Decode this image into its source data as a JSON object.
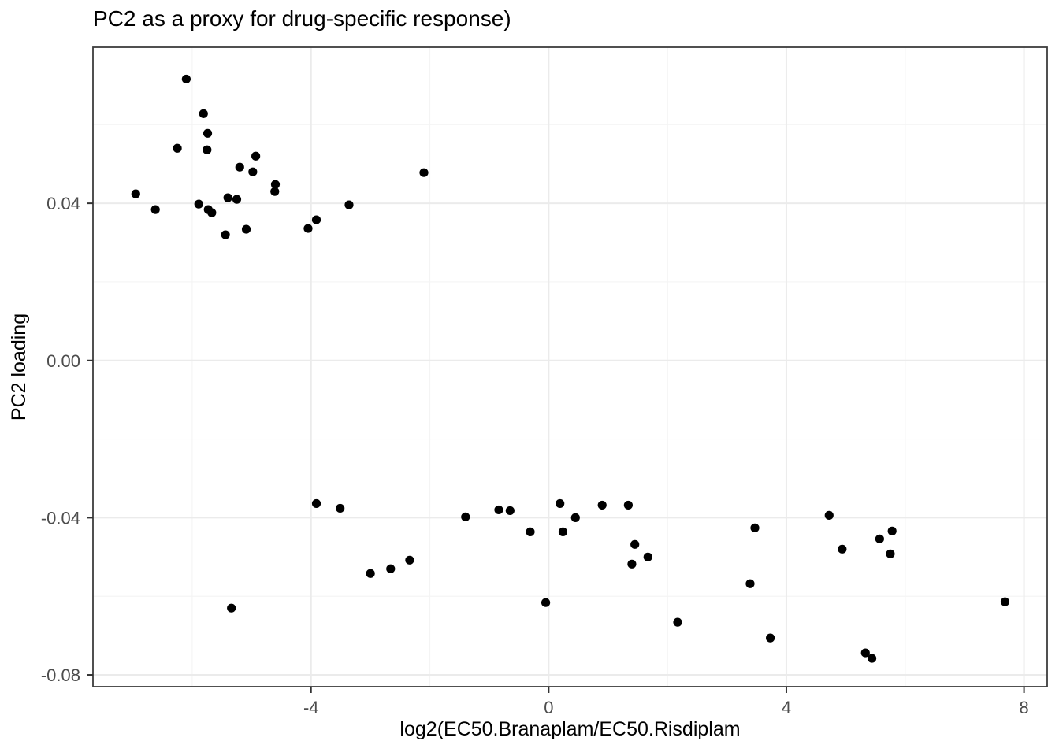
{
  "chart_data": {
    "type": "scatter",
    "title": "PC2 as a proxy for drug-specific response)",
    "xlabel": "log2(EC50.Branaplam/EC50.Risdiplam",
    "ylabel": "PC2 loading",
    "legend": "none",
    "grid": "major+minor",
    "xlim": [
      -7.67,
      8.39
    ],
    "ylim": [
      -0.083,
      0.0797
    ],
    "x_ticks": [
      {
        "value": -4,
        "label": "-4"
      },
      {
        "value": 0,
        "label": "0"
      },
      {
        "value": 4,
        "label": "4"
      },
      {
        "value": 8,
        "label": "8"
      }
    ],
    "y_ticks": [
      {
        "value": 0.04,
        "label": "0.04"
      },
      {
        "value": 0.0,
        "label": "0.00"
      },
      {
        "value": -0.04,
        "label": "-0.04"
      },
      {
        "value": -0.08,
        "label": "-0.08"
      }
    ],
    "x_minor": [
      -6,
      -2,
      2,
      6
    ],
    "y_minor": [
      0.06,
      0.02,
      -0.02,
      -0.06
    ],
    "colors": {
      "point": "#000000",
      "grid_major": "#EBEBEB",
      "grid_minor": "#F4F4F4",
      "panel_border": "#3d3d3d",
      "tick_mark": "#333333",
      "tick_label": "#4d4d4d",
      "panel_background": "#ffffff"
    },
    "points": [
      [
        -6.1,
        0.0716
      ],
      [
        -5.81,
        0.0628
      ],
      [
        -5.74,
        0.0578
      ],
      [
        -6.25,
        0.054
      ],
      [
        -5.75,
        0.0536
      ],
      [
        -4.93,
        0.052
      ],
      [
        -5.2,
        0.0492
      ],
      [
        -4.98,
        0.048
      ],
      [
        -4.6,
        0.0448
      ],
      [
        -4.61,
        0.043
      ],
      [
        -6.95,
        0.0424
      ],
      [
        -5.4,
        0.0414
      ],
      [
        -5.25,
        0.041
      ],
      [
        -5.89,
        0.0398
      ],
      [
        -6.62,
        0.0384
      ],
      [
        -5.73,
        0.0384
      ],
      [
        -5.67,
        0.0376
      ],
      [
        -3.91,
        0.0358
      ],
      [
        -4.05,
        0.0336
      ],
      [
        -5.09,
        0.0334
      ],
      [
        -5.44,
        0.032
      ],
      [
        -3.36,
        0.0396
      ],
      [
        -2.1,
        0.0478
      ],
      [
        -3.91,
        -0.0364
      ],
      [
        -3.51,
        -0.0376
      ],
      [
        -3.0,
        -0.0542
      ],
      [
        -2.66,
        -0.053
      ],
      [
        -2.34,
        -0.0508
      ],
      [
        -5.34,
        -0.063
      ],
      [
        -1.4,
        -0.0398
      ],
      [
        -0.84,
        -0.038
      ],
      [
        -0.65,
        -0.0382
      ],
      [
        -0.31,
        -0.0436
      ],
      [
        0.19,
        -0.0364
      ],
      [
        0.45,
        -0.04
      ],
      [
        0.24,
        -0.0436
      ],
      [
        0.9,
        -0.0368
      ],
      [
        1.34,
        -0.0368
      ],
      [
        1.45,
        -0.0468
      ],
      [
        1.4,
        -0.0518
      ],
      [
        1.67,
        -0.05
      ],
      [
        -0.05,
        -0.0616
      ],
      [
        2.17,
        -0.0666
      ],
      [
        3.47,
        -0.0426
      ],
      [
        4.72,
        -0.0394
      ],
      [
        4.94,
        -0.048
      ],
      [
        5.57,
        -0.0454
      ],
      [
        5.78,
        -0.0434
      ],
      [
        5.75,
        -0.0492
      ],
      [
        3.39,
        -0.0568
      ],
      [
        3.73,
        -0.0706
      ],
      [
        5.33,
        -0.0744
      ],
      [
        5.44,
        -0.0758
      ],
      [
        7.68,
        -0.0614
      ]
    ]
  }
}
